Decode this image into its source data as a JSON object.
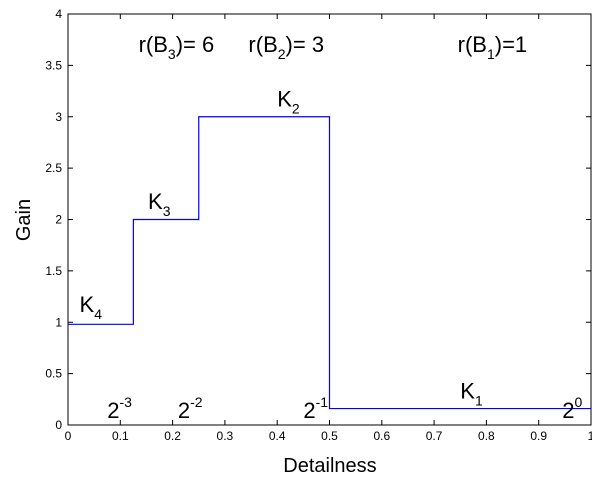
{
  "chart_data": {
    "type": "line",
    "xlabel": "Detailness",
    "ylabel": "Gain",
    "xlim": [
      0,
      1
    ],
    "ylim": [
      0,
      4
    ],
    "grid": false,
    "line_color": "#0000ff",
    "x_tick_labels": [
      "0",
      "0.1",
      "0.2",
      "0.3",
      "0.4",
      "0.5",
      "0.6",
      "0.7",
      "0.8",
      "0.9",
      "1"
    ],
    "y_tick_labels": [
      "0",
      "0.5",
      "1",
      "1.5",
      "2",
      "2.5",
      "3",
      "3.5",
      "4"
    ],
    "series": [
      {
        "x": [
          0,
          0.125,
          0.125,
          0.25,
          0.25,
          0.5,
          0.5,
          1
        ],
        "y": [
          0.98,
          0.98,
          2.0,
          2.0,
          3.0,
          3.0,
          0.16,
          0.16
        ]
      }
    ],
    "annotations": [
      {
        "id": "rB3",
        "pre": "r(B",
        "sub": "3",
        "post": ")= 6",
        "x": 0.135,
        "y": 3.63
      },
      {
        "id": "rB2",
        "pre": "r(B",
        "sub": "2",
        "post": ")= 3",
        "x": 0.345,
        "y": 3.63
      },
      {
        "id": "rB1",
        "pre": "r(B",
        "sub": "1",
        "post": ")=1",
        "x": 0.745,
        "y": 3.63
      },
      {
        "id": "K4",
        "pre": "K",
        "sub": "4",
        "post": "",
        "x": 0.022,
        "y": 1.1
      },
      {
        "id": "K3",
        "pre": "K",
        "sub": "3",
        "post": "",
        "x": 0.153,
        "y": 2.1
      },
      {
        "id": "K2",
        "pre": "K",
        "sub": "2",
        "post": "",
        "x": 0.4,
        "y": 3.1
      },
      {
        "id": "K1",
        "pre": "K",
        "sub": "1",
        "post": "",
        "x": 0.75,
        "y": 0.26
      },
      {
        "id": "p2m3",
        "pre": "2",
        "sup": "-3",
        "x": 0.075,
        "y": 0.07
      },
      {
        "id": "p2m2",
        "pre": "2",
        "sup": "-2",
        "x": 0.21,
        "y": 0.07
      },
      {
        "id": "p2m1",
        "pre": "2",
        "sup": "-1",
        "x": 0.45,
        "y": 0.07
      },
      {
        "id": "p20",
        "pre": "2",
        "sup": "0",
        "x": 0.945,
        "y": 0.07
      }
    ]
  }
}
